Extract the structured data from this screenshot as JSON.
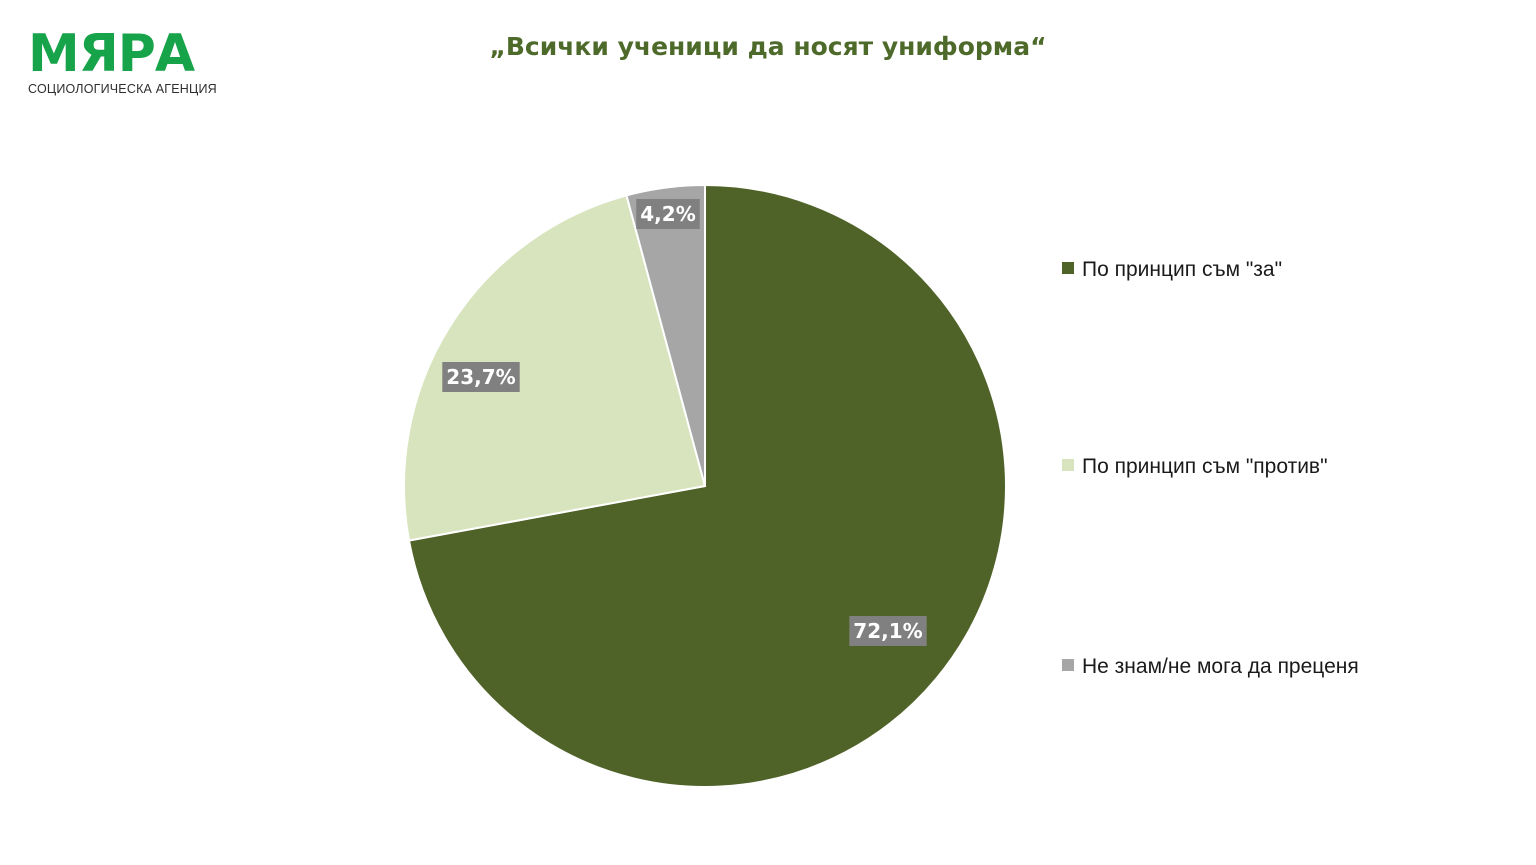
{
  "logo": {
    "wordmark": "МЯРА",
    "subtitle": "СОЦИОЛОГИЧЕСКА АГЕНЦИЯ"
  },
  "chart_data": {
    "type": "pie",
    "title": "„Всички ученици да носят униформа“",
    "series": [
      {
        "categories": [
          "По принцип съм \"за\"",
          "По принцип съм \"против\"",
          "Не знам/не мога да преценя"
        ],
        "values": [
          72.1,
          23.7,
          4.2
        ],
        "value_labels": [
          "72,1%",
          "23,7%",
          "4,2%"
        ],
        "colors": [
          "#4f6228",
          "#d7e4bd",
          "#a6a6a6"
        ]
      }
    ],
    "legend_position": "right",
    "start_angle": "12 o'clock",
    "direction": "clockwise"
  }
}
